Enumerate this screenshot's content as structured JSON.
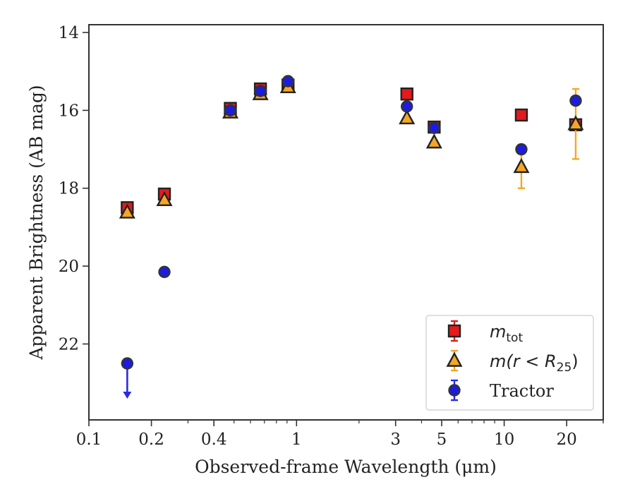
{
  "chart_data": {
    "type": "scatter",
    "xscale": "log",
    "yinverted": true,
    "xlim": [
      0.1,
      30
    ],
    "ylim": [
      23.95,
      13.8
    ],
    "xlabel": "Observed-frame Wavelength (μm)",
    "ylabel": "Apparent Brightness (AB mag)",
    "grid": false,
    "legend_position": "lower-right",
    "x_ticks": [
      {
        "value": 0.1,
        "label": "0.1"
      },
      {
        "value": 0.2,
        "label": "0.2"
      },
      {
        "value": 0.4,
        "label": "0.4"
      },
      {
        "value": 1,
        "label": "1"
      },
      {
        "value": 3,
        "label": "3"
      },
      {
        "value": 5,
        "label": "5"
      },
      {
        "value": 10,
        "label": "10"
      },
      {
        "value": 20,
        "label": "20"
      }
    ],
    "y_ticks": [
      {
        "value": 14,
        "label": "14"
      },
      {
        "value": 16,
        "label": "16"
      },
      {
        "value": 18,
        "label": "18"
      },
      {
        "value": 20,
        "label": "20"
      },
      {
        "value": 22,
        "label": "22"
      }
    ],
    "series": [
      {
        "name": "m_tot",
        "marker": "square",
        "color": "#e41a1c",
        "errcolor": "#e41a1c",
        "x": [
          0.153,
          0.231,
          0.48,
          0.67,
          0.91,
          3.4,
          4.6,
          12.1,
          22.1
        ],
        "y": [
          18.5,
          18.15,
          15.95,
          15.45,
          15.35,
          15.58,
          16.43,
          16.12,
          16.37
        ],
        "err": [
          0.05,
          0.05,
          0.02,
          0.02,
          0.02,
          0.02,
          0.02,
          0.03,
          0.05
        ]
      },
      {
        "name": "m(r<R25)",
        "marker": "triangle",
        "color": "#f5a623",
        "errcolor": "#f5a623",
        "x": [
          0.153,
          0.231,
          0.48,
          0.67,
          0.91,
          3.4,
          4.6,
          12.1,
          22.1
        ],
        "y": [
          18.62,
          18.3,
          16.05,
          15.58,
          15.4,
          16.2,
          16.82,
          17.45,
          16.35
        ],
        "err": [
          0.05,
          0.05,
          0.02,
          0.02,
          0.02,
          0.03,
          0.03,
          0.55,
          0.9
        ]
      },
      {
        "name": "Tractor",
        "marker": "circle",
        "color": "#1c1ce0",
        "errcolor": "#2a2ae8",
        "x": [
          0.153,
          0.231,
          0.48,
          0.67,
          0.91,
          3.4,
          4.6,
          12.1,
          22.1
        ],
        "y": [
          22.5,
          20.15,
          16.0,
          15.5,
          15.25,
          15.9,
          16.45,
          17.0,
          15.75
        ],
        "err": [
          0,
          0.05,
          0.02,
          0.02,
          0.02,
          0.03,
          0.03,
          0.05,
          0.05
        ],
        "upper_limit_index": 0
      }
    ],
    "legend": [
      {
        "series": 0,
        "label_main": "m",
        "label_sub": "tot"
      },
      {
        "series": 1,
        "label_main": "m(r < R",
        "label_sub": "25",
        "label_tail": ")"
      },
      {
        "series": 2,
        "label_main": "Tractor",
        "label_sub": "",
        "label_tail": ""
      }
    ]
  }
}
